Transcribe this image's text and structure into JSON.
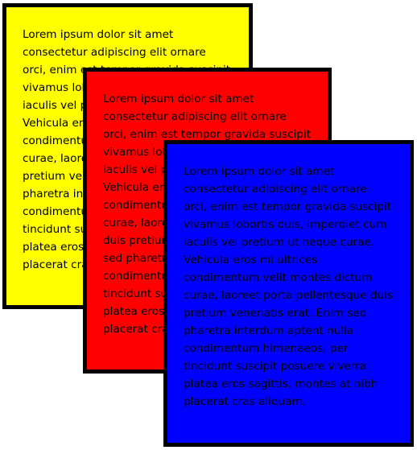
{
  "cards": [
    {
      "name": "yellow",
      "color": "#ffff00",
      "text": "Lorem ipsum dolor sit amet consectetur adipiscing elit ornare orci, enim est tempor gravida suscipit vivamus lobortis duis, imperdiet cum iaculis vel pretium ut neque curae. Vehicula eros mi ultrices condimentum velit montes dictum curae, laoreet porta pellentesque duis pretium venenatis erat. Enim sed pharetra interdum aptent nulla condimentum himenaeos, per tincidunt suscipit posuere viverra platea eros sagittis, montes at nibh placerat cras aliquam."
    },
    {
      "name": "red",
      "color": "#ff0000",
      "text": "Lorem ipsum dolor sit amet consectetur adipiscing elit ornare orci, enim est tempor gravida suscipit vivamus lobortis duis, imperdiet cum iaculis vel pretium ut neque curae. Vehicula eros mi ultrices condimentum velit montes dictum curae, laoreet porta pellentesque duis pretium venenatis erat. Enim sed pharetra interdum aptent nulla condimentum himenaeos, per tincidunt suscipit posuere viverra platea eros sagittis, montes at nibh placerat cras aliquam."
    },
    {
      "name": "blue",
      "color": "#0000ff",
      "text": "Lorem ipsum dolor sit amet consectetur adipiscing elit ornare orci, enim est tempor gravida suscipit vivamus lobortis duis, imperdiet cum iaculis vel pretium ut neque curae. Vehicula eros mi ultrices condimentum velit montes dictum curae, laoreet porta pellentesque duis pretium venenatis erat. Enim sed pharetra interdum aptent nulla condimentum himenaeos, per tincidunt suscipit posuere viverra platea eros sagittis, montes at nibh placerat cras aliquam."
    }
  ]
}
